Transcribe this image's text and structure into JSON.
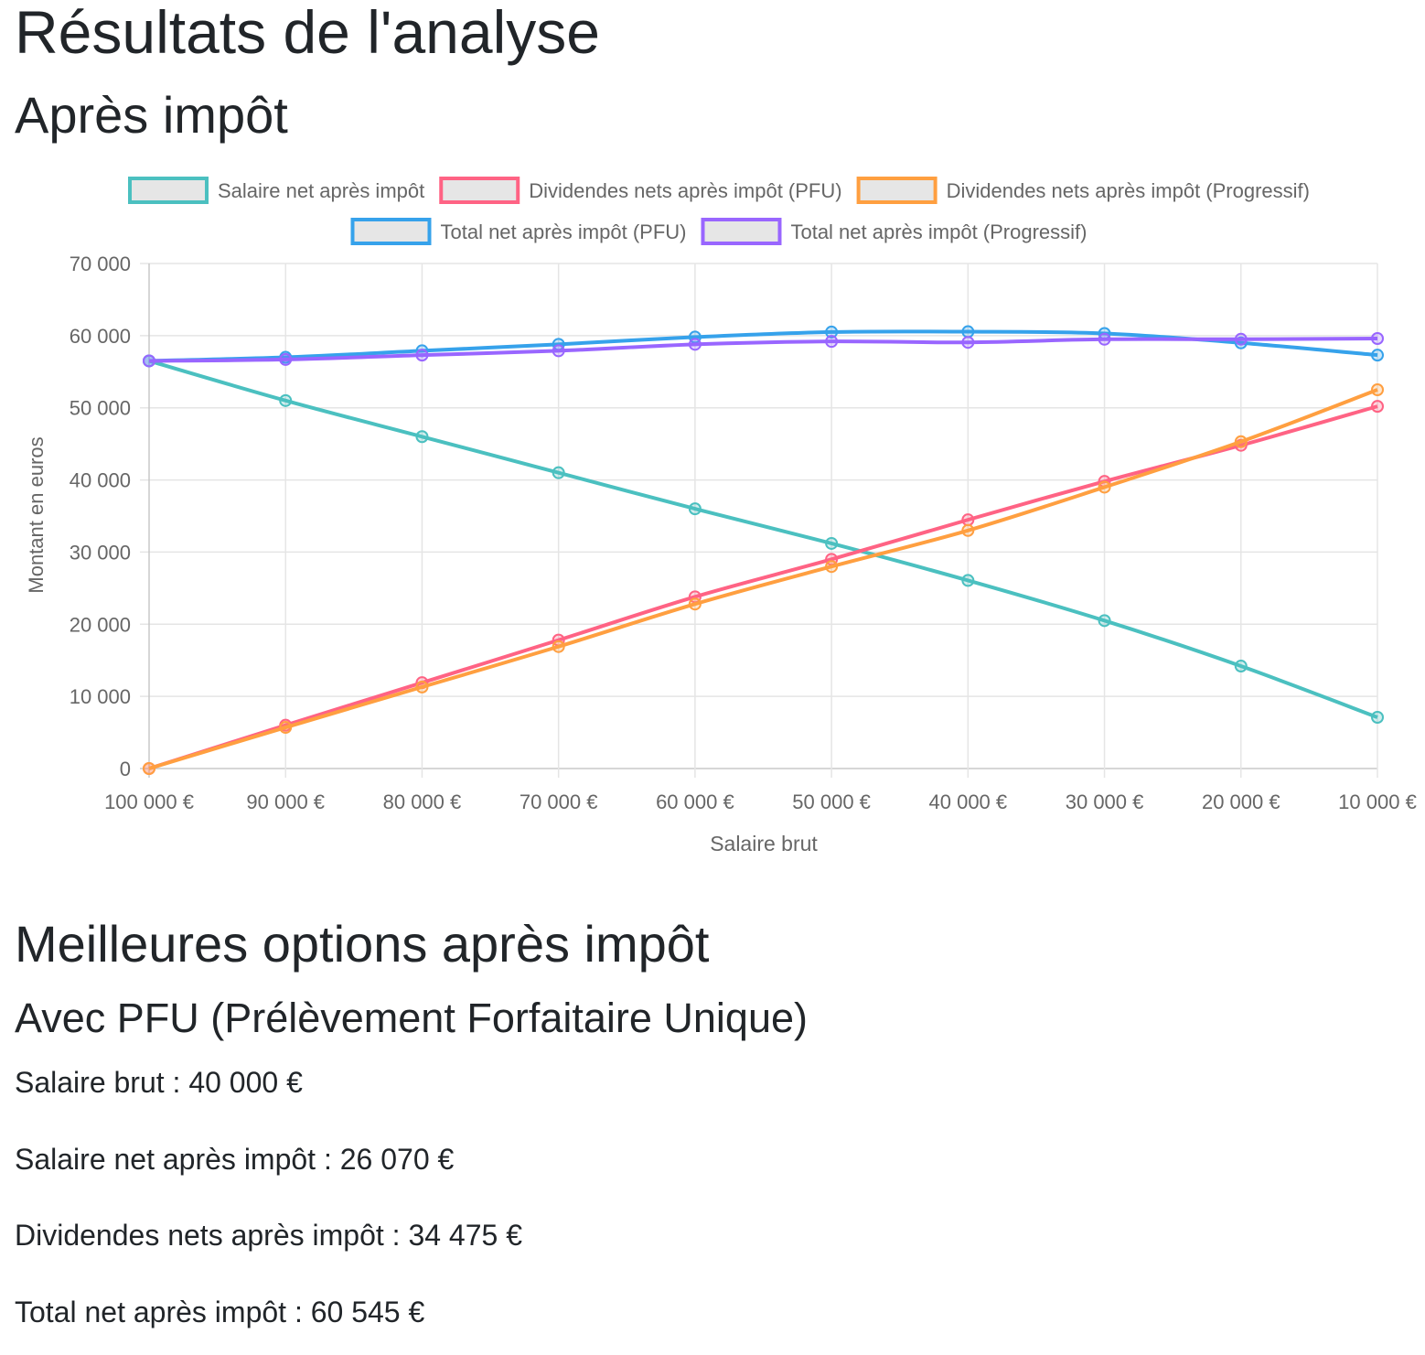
{
  "header": {
    "title": "Résultats de l'analyse",
    "section_title": "Après impôt"
  },
  "best_options": {
    "title": "Meilleures options après impôt",
    "pfu_title": "Avec PFU (Prélèvement Forfaitaire Unique)",
    "lines": [
      "Salaire brut : 40 000 €",
      "Salaire net après impôt : 26 070 €",
      "Dividendes nets après impôt : 34 475 €",
      "Total net après impôt : 60 545 €"
    ]
  },
  "chart_data": {
    "type": "line",
    "title": "",
    "xlabel": "Salaire brut",
    "ylabel": "Montant en euros",
    "ylim": [
      0,
      70000
    ],
    "y_ticks": [
      0,
      10000,
      20000,
      30000,
      40000,
      50000,
      60000,
      70000
    ],
    "y_tick_labels": [
      "0",
      "10 000",
      "20 000",
      "30 000",
      "40 000",
      "50 000",
      "60 000",
      "70 000"
    ],
    "categories": [
      "100 000 €",
      "90 000 €",
      "80 000 €",
      "70 000 €",
      "60 000 €",
      "50 000 €",
      "40 000 €",
      "30 000 €",
      "20 000 €",
      "10 000 €"
    ],
    "x_values": [
      100000,
      90000,
      80000,
      70000,
      60000,
      50000,
      40000,
      30000,
      20000,
      10000
    ],
    "grid": true,
    "legend_position": "top",
    "series": [
      {
        "name": "Salaire net après impôt",
        "color": "#4bc0c0",
        "values": [
          56500,
          51000,
          46000,
          41000,
          36000,
          31200,
          26070,
          20500,
          14200,
          7100
        ]
      },
      {
        "name": "Dividendes nets après impôt (PFU)",
        "color": "#ff6384",
        "values": [
          0,
          6000,
          11900,
          17800,
          23800,
          29000,
          34475,
          39800,
          44800,
          50200
        ]
      },
      {
        "name": "Dividendes nets après impôt (Progressif)",
        "color": "#ff9f40",
        "values": [
          0,
          5700,
          11300,
          16900,
          22800,
          28000,
          33000,
          39000,
          45300,
          52500
        ]
      },
      {
        "name": "Total net après impôt (PFU)",
        "color": "#36a2eb",
        "values": [
          56500,
          57000,
          57900,
          58800,
          59800,
          60500,
          60545,
          60300,
          59000,
          57300
        ]
      },
      {
        "name": "Total net après impôt (Progressif)",
        "color": "#9966ff",
        "values": [
          56500,
          56700,
          57300,
          57900,
          58800,
          59200,
          59070,
          59500,
          59500,
          59600
        ]
      }
    ]
  }
}
